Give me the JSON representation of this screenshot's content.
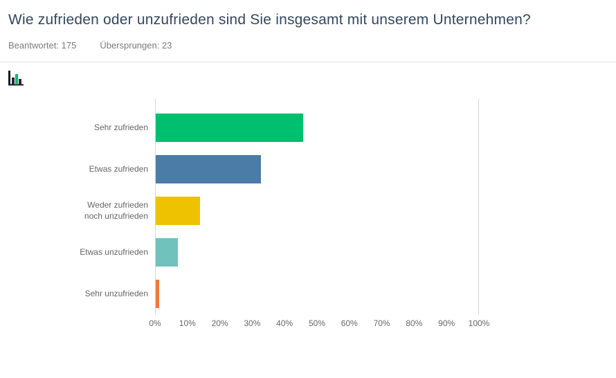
{
  "header": {
    "title": "Wie zufrieden oder unzufrieden sind Sie insgesamt mit unserem Unternehmen?",
    "answered_label": "Beantwortet:",
    "answered_value": "175",
    "skipped_label": "Übersprungen:",
    "skipped_value": "23"
  },
  "toolbar": {
    "chart_type_selected": "bar-chart"
  },
  "chart_data": {
    "type": "bar",
    "orientation": "horizontal",
    "title": "Wie zufrieden oder unzufrieden sind Sie insgesamt mit unserem Unternehmen?",
    "categories": [
      "Sehr zufrieden",
      "Etwas zufrieden",
      "Weder zufrieden noch unzufrieden",
      "Etwas unzufrieden",
      "Sehr unzufrieden"
    ],
    "values": [
      45.71,
      32.57,
      13.71,
      6.86,
      1.14
    ],
    "unit": "%",
    "colors": [
      "#00BF6F",
      "#4B7CA8",
      "#EEC200",
      "#6FC3BC",
      "#F0793B"
    ],
    "x_ticks": [
      "0%",
      "10%",
      "20%",
      "30%",
      "40%",
      "50%",
      "60%",
      "70%",
      "80%",
      "90%",
      "100%"
    ],
    "xlim": [
      0,
      100
    ],
    "legend": "none",
    "grid": "none"
  },
  "colors": {
    "title_text": "#33475C",
    "muted_text": "#7b7b7b",
    "axis_line": "#d6d6d6"
  }
}
